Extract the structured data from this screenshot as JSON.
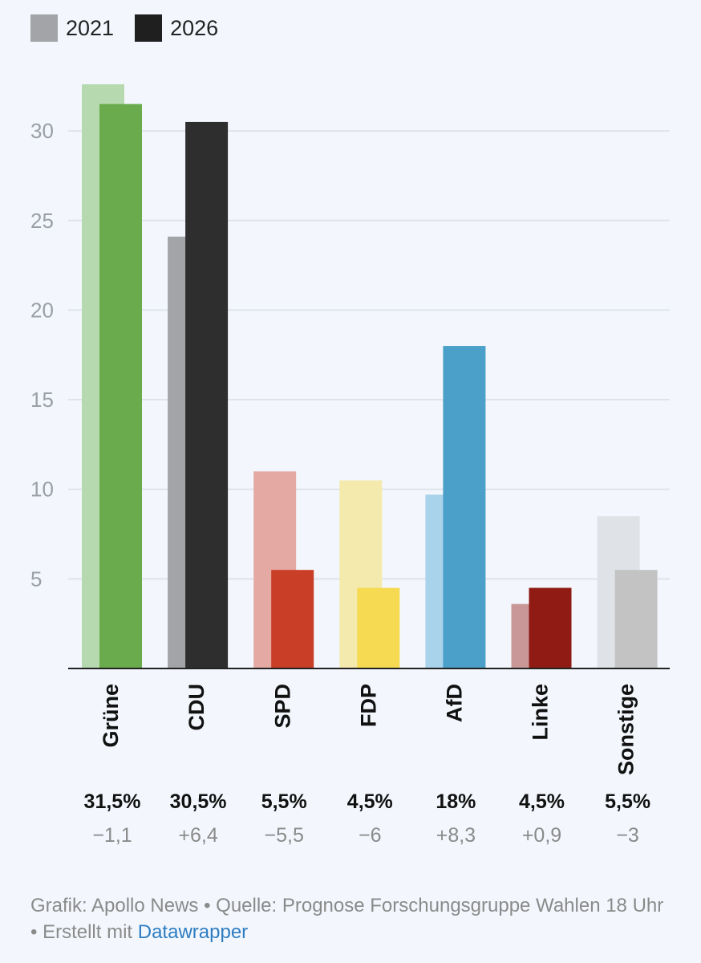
{
  "legend": [
    {
      "label": "2021",
      "color": "#a2a4a7"
    },
    {
      "label": "2026",
      "color": "#1f1f1f"
    }
  ],
  "chart_data": {
    "type": "bar",
    "categories": [
      "Grüne",
      "CDU",
      "SPD",
      "FDP",
      "AfD",
      "Linke",
      "Sonstige"
    ],
    "series": [
      {
        "name": "2021",
        "values": [
          32.6,
          24.1,
          11.0,
          10.5,
          9.7,
          3.6,
          8.5
        ]
      },
      {
        "name": "2026",
        "values": [
          31.5,
          30.5,
          5.5,
          4.5,
          18.0,
          4.5,
          5.5
        ]
      }
    ],
    "colors_2021": [
      "#b7d9b0",
      "#a2a4a7",
      "#e4a9a2",
      "#f5eaae",
      "#a9d3ea",
      "#c99797",
      "#dfe2e6"
    ],
    "colors_2026": [
      "#6aac4d",
      "#2e2e2e",
      "#c93e27",
      "#f5da52",
      "#4aa0c9",
      "#8f1b14",
      "#c3c3c3"
    ],
    "value_labels": [
      "31,5%",
      "30,5%",
      "5,5%",
      "4,5%",
      "18%",
      "4,5%",
      "5,5%"
    ],
    "change_labels": [
      "−1,1",
      "+6,4",
      "−5,5",
      "−6",
      "+8,3",
      "+0,9",
      "−3"
    ],
    "yticks": [
      "5",
      "10",
      "15",
      "20",
      "25",
      "30"
    ],
    "ylim": [
      0,
      33.5
    ],
    "grid": true,
    "legend_position": "top-left",
    "title": "",
    "xlabel": "",
    "ylabel": ""
  },
  "footer": {
    "text": "Grafik: Apollo News • Quelle: Prognose Forschungsgruppe Wahlen 18 Uhr • Erstellt mit ",
    "link": "Datawrapper"
  }
}
